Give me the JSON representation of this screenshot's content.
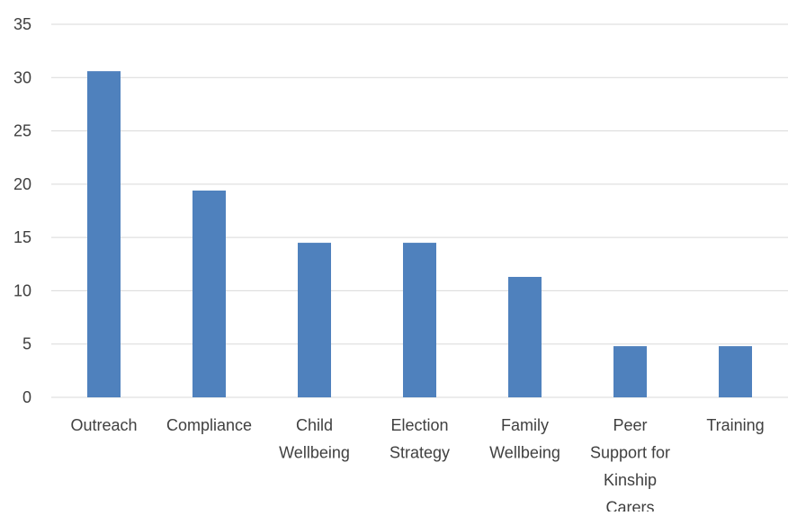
{
  "chart_data": {
    "type": "bar",
    "categories": [
      "Outreach",
      "Compliance",
      "Child Wellbeing",
      "Election Strategy",
      "Family Wellbeing",
      "Peer Support for Kinship Carers",
      "Training"
    ],
    "category_label_lines": [
      [
        "Outreach"
      ],
      [
        "Compliance"
      ],
      [
        "Child",
        "Wellbeing"
      ],
      [
        "Election",
        "Strategy"
      ],
      [
        "Family",
        "Wellbeing"
      ],
      [
        "Peer",
        "Support for",
        "Kinship",
        "Carers"
      ],
      [
        "Training"
      ]
    ],
    "series": [
      {
        "values": [
          30.6,
          19.4,
          14.5,
          14.5,
          11.3,
          4.8,
          4.8
        ]
      }
    ],
    "title": "",
    "xlabel": "",
    "ylabel": "",
    "ylim": [
      0,
      35
    ],
    "yticks": [
      0,
      5,
      10,
      15,
      20,
      25,
      30,
      35
    ],
    "grid": true,
    "legend": "none",
    "bar_color": "#4f81bd"
  }
}
